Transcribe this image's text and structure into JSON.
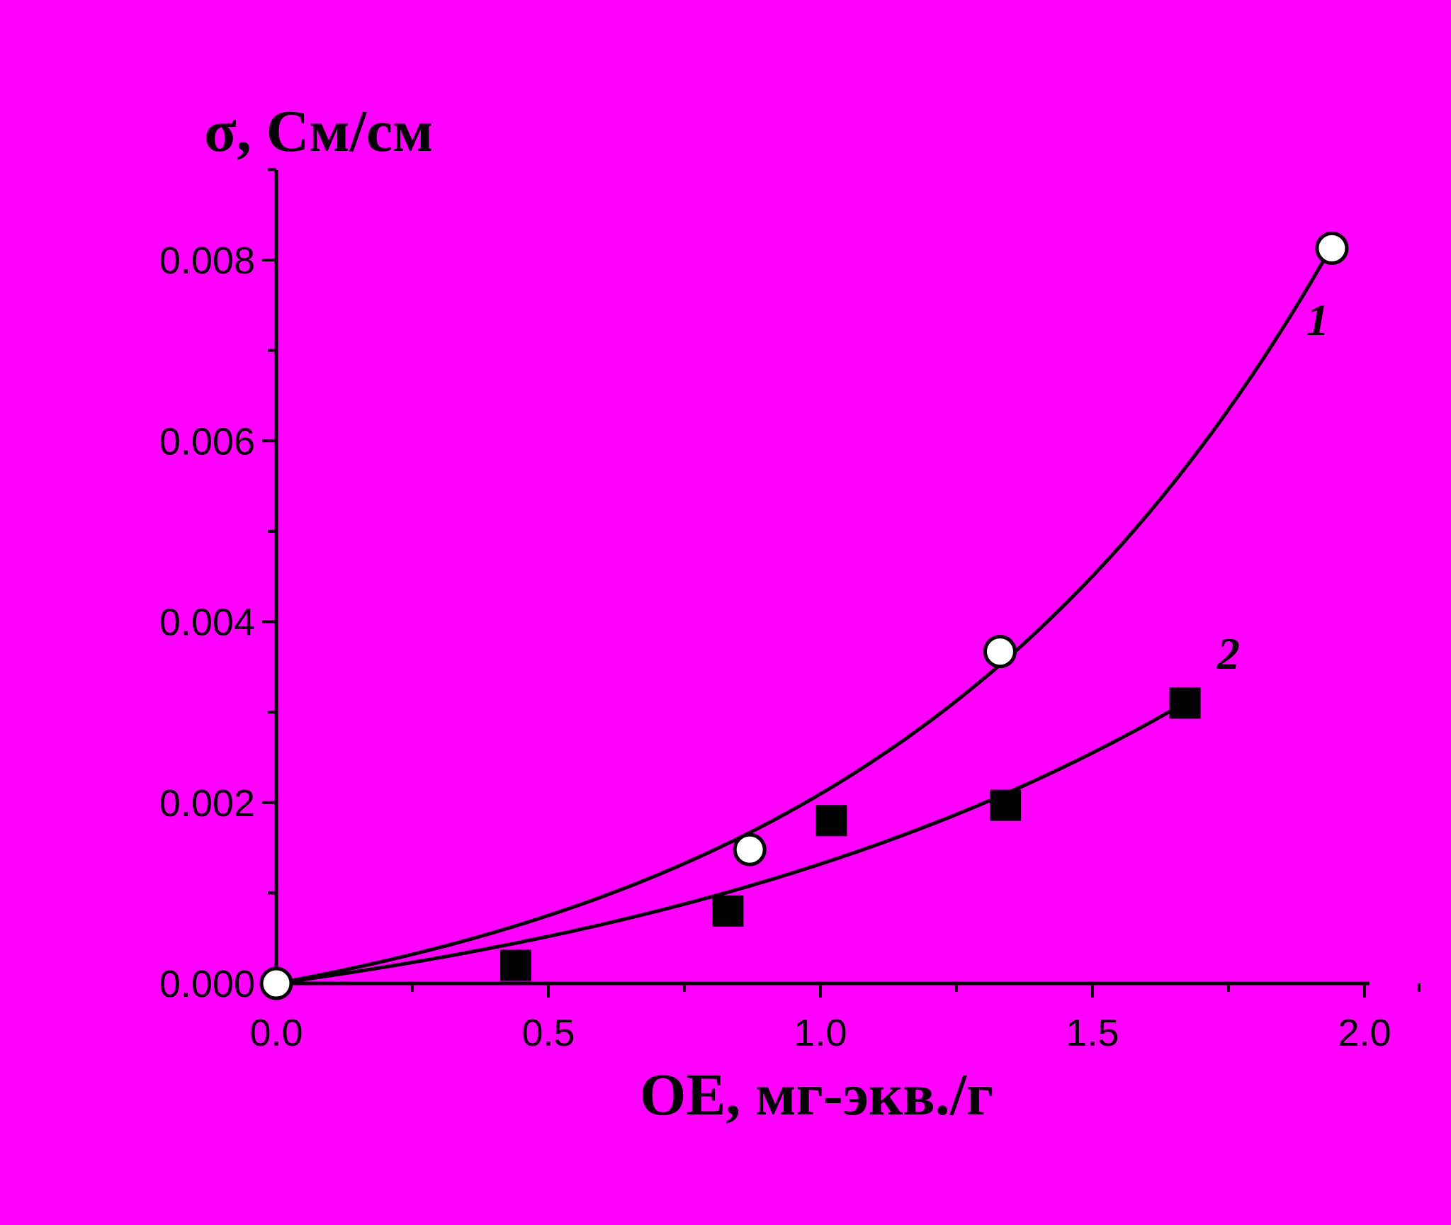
{
  "chart_data": {
    "type": "scatter",
    "title": "",
    "xlabel": "ОЕ, мг-экв./г",
    "ylabel": "σ, См/см",
    "xlim": [
      0.0,
      2.1
    ],
    "ylim": [
      0.0,
      0.009
    ],
    "x_ticks": [
      "0.0",
      "0.5",
      "1.0",
      "1.5",
      "2.0"
    ],
    "y_ticks": [
      "0.000",
      "0.002",
      "0.004",
      "0.006",
      "0.008"
    ],
    "grid": false,
    "legend": "none",
    "series": [
      {
        "name": "1",
        "marker": "open-circle",
        "points": [
          {
            "x": 0.0,
            "y": 0.0
          },
          {
            "x": 0.87,
            "y": 0.00148
          },
          {
            "x": 1.33,
            "y": 0.00367
          },
          {
            "x": 1.94,
            "y": 0.00813
          }
        ],
        "fit_end_x": 1.95
      },
      {
        "name": "2",
        "marker": "filled-square",
        "points": [
          {
            "x": 0.44,
            "y": 0.0002
          },
          {
            "x": 0.83,
            "y": 0.0008
          },
          {
            "x": 1.02,
            "y": 0.0018
          },
          {
            "x": 1.34,
            "y": 0.00197
          },
          {
            "x": 1.67,
            "y": 0.0031
          }
        ],
        "fit_end_x": 1.67
      }
    ]
  },
  "colors": {
    "background": "#FF00FF",
    "ink": "#000000",
    "open_marker_fill": "#FFFFFF"
  }
}
